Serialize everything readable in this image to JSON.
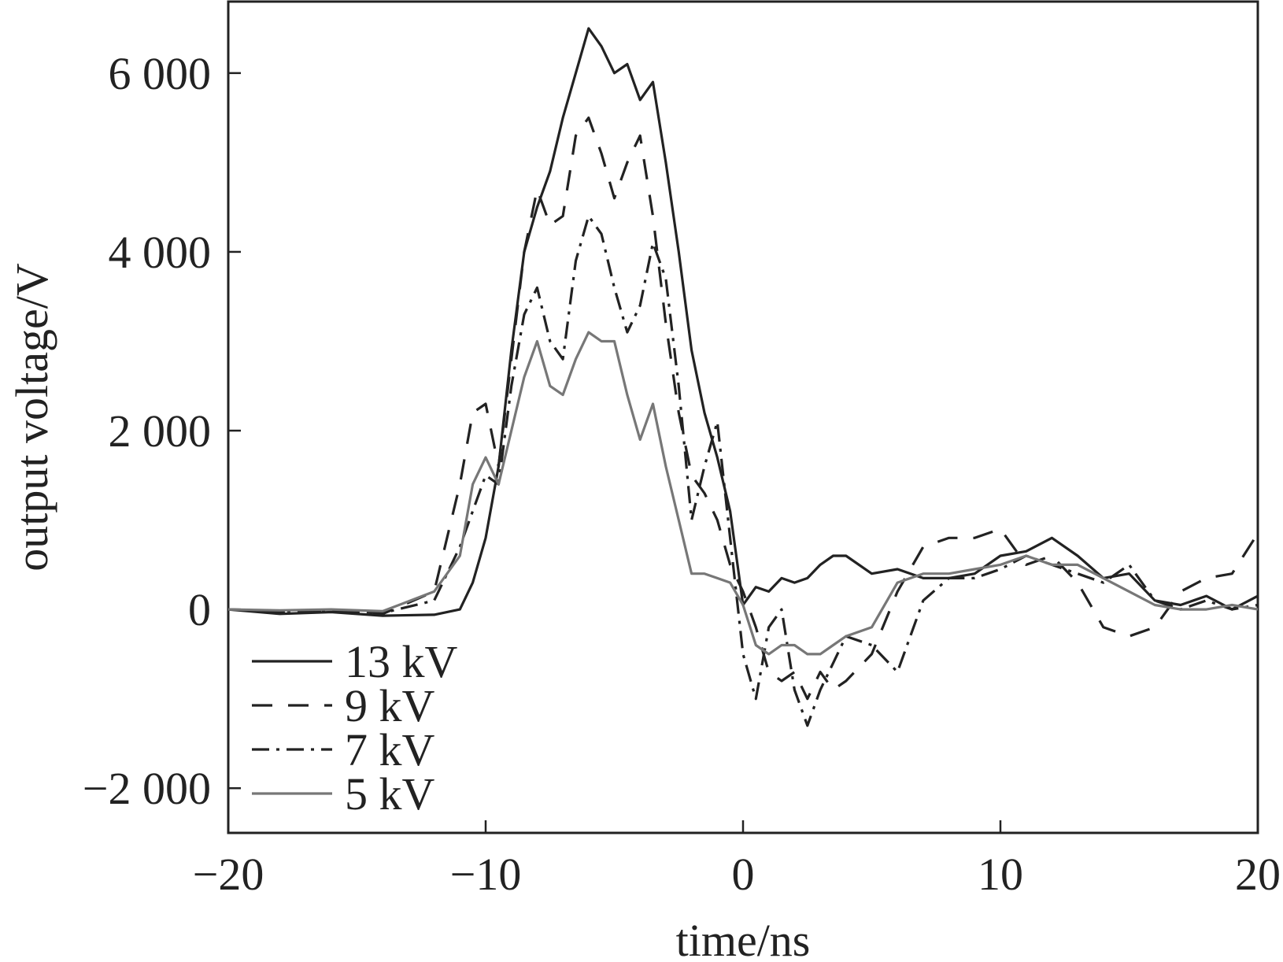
{
  "chart_data": {
    "type": "line",
    "title": "",
    "xlabel": "time/ns",
    "ylabel": "output voltage/V",
    "xlim": [
      -20,
      20
    ],
    "ylim": [
      -2500,
      6800
    ],
    "x_ticks": [
      -20,
      -10,
      0,
      10,
      20
    ],
    "x_tick_labels": [
      "−20",
      "−10",
      "0",
      "10",
      "20"
    ],
    "y_ticks": [
      -2000,
      0,
      2000,
      4000,
      6000
    ],
    "y_tick_labels": [
      "−2 000",
      "0",
      "2 000",
      "4 000",
      "6 000"
    ],
    "grid": false,
    "legend_position": "bottom-left",
    "series": [
      {
        "name": "13 kV",
        "style": "solid",
        "color": "#222222",
        "x": [
          -20,
          -18,
          -16,
          -14,
          -12,
          -11,
          -10.5,
          -10,
          -9.5,
          -9,
          -8.5,
          -8,
          -7.5,
          -7,
          -6.5,
          -6,
          -5.5,
          -5,
          -4.5,
          -4,
          -3.5,
          -3,
          -2.5,
          -2,
          -1.5,
          -1,
          -0.5,
          0,
          0.5,
          1,
          1.5,
          2,
          2.5,
          3,
          3.5,
          4,
          5,
          6,
          7,
          8,
          9,
          10,
          11,
          12,
          13,
          14,
          15,
          16,
          17,
          18,
          19,
          20
        ],
        "y": [
          0,
          -50,
          -30,
          -70,
          -60,
          0,
          300,
          800,
          1600,
          2900,
          4000,
          4500,
          4900,
          5500,
          6000,
          6500,
          6300,
          6000,
          6100,
          5700,
          5900,
          5000,
          4000,
          2900,
          2200,
          1700,
          1100,
          50,
          250,
          200,
          350,
          300,
          350,
          500,
          600,
          600,
          400,
          450,
          350,
          350,
          400,
          600,
          650,
          800,
          600,
          350,
          400,
          100,
          50,
          150,
          0,
          150
        ]
      },
      {
        "name": "9 kV",
        "style": "dashed",
        "color": "#222222",
        "x": [
          -20,
          -18,
          -16,
          -14,
          -12,
          -11,
          -10.5,
          -10,
          -9.5,
          -9,
          -8.5,
          -8,
          -7.5,
          -7,
          -6.5,
          -6,
          -5.5,
          -5,
          -4.5,
          -4,
          -3.5,
          -3,
          -2.5,
          -2,
          -1.5,
          -1,
          -0.5,
          0,
          0.5,
          1,
          1.5,
          2,
          2.5,
          3,
          3.5,
          4,
          5,
          6,
          7,
          8,
          9,
          10,
          11,
          12,
          13,
          14,
          15,
          16,
          17,
          18,
          19,
          20
        ],
        "y": [
          0,
          -30,
          -20,
          -50,
          200,
          1400,
          2200,
          2300,
          1600,
          2800,
          4000,
          4700,
          4300,
          4400,
          5300,
          5500,
          5100,
          4600,
          5000,
          5300,
          4400,
          3200,
          2200,
          1500,
          1300,
          1000,
          500,
          200,
          -200,
          -700,
          -800,
          -700,
          -1000,
          -700,
          -900,
          -800,
          -500,
          200,
          700,
          800,
          800,
          900,
          500,
          600,
          300,
          -200,
          -300,
          -200,
          200,
          350,
          400,
          850
        ]
      },
      {
        "name": "7 kV",
        "style": "dashdot",
        "color": "#222222",
        "x": [
          -20,
          -18,
          -16,
          -14,
          -12,
          -11,
          -10.5,
          -10,
          -9.5,
          -9,
          -8.5,
          -8,
          -7.5,
          -7,
          -6.5,
          -6,
          -5.5,
          -5,
          -4.5,
          -4,
          -3.5,
          -3,
          -2.5,
          -2,
          -1.5,
          -1,
          -0.5,
          0,
          0.5,
          1,
          1.5,
          2,
          2.5,
          3,
          3.5,
          4,
          5,
          6,
          7,
          8,
          9,
          10,
          11,
          12,
          13,
          14,
          15,
          16,
          17,
          18,
          19,
          20
        ],
        "y": [
          0,
          -20,
          -10,
          -40,
          100,
          700,
          1100,
          1500,
          1400,
          2500,
          3300,
          3600,
          3000,
          2800,
          3900,
          4400,
          4200,
          3600,
          3100,
          3400,
          4100,
          3700,
          2500,
          1000,
          1600,
          2100,
          800,
          -500,
          -1000,
          -200,
          0,
          -900,
          -1300,
          -900,
          -600,
          -300,
          -400,
          -700,
          100,
          350,
          350,
          450,
          600,
          500,
          400,
          300,
          500,
          100,
          0,
          100,
          0,
          50
        ]
      },
      {
        "name": "5 kV",
        "style": "solid",
        "color": "#777777",
        "x": [
          -20,
          -18,
          -16,
          -14,
          -12,
          -11,
          -10.5,
          -10,
          -9.5,
          -9,
          -8.5,
          -8,
          -7.5,
          -7,
          -6.5,
          -6,
          -5.5,
          -5,
          -4.5,
          -4,
          -3.5,
          -3,
          -2.5,
          -2,
          -1.5,
          -1,
          -0.5,
          0,
          0.5,
          1,
          1.5,
          2,
          2.5,
          3,
          3.5,
          4,
          5,
          6,
          7,
          8,
          9,
          10,
          11,
          12,
          13,
          14,
          15,
          16,
          17,
          18,
          19,
          20
        ],
        "y": [
          0,
          -10,
          0,
          -20,
          200,
          600,
          1400,
          1700,
          1400,
          2000,
          2600,
          3000,
          2500,
          2400,
          2800,
          3100,
          3000,
          3000,
          2400,
          1900,
          2300,
          1600,
          1000,
          400,
          400,
          350,
          300,
          50,
          -400,
          -500,
          -400,
          -400,
          -500,
          -500,
          -400,
          -300,
          -200,
          300,
          400,
          400,
          450,
          500,
          600,
          500,
          500,
          350,
          200,
          50,
          0,
          0,
          50,
          0
        ]
      }
    ]
  }
}
